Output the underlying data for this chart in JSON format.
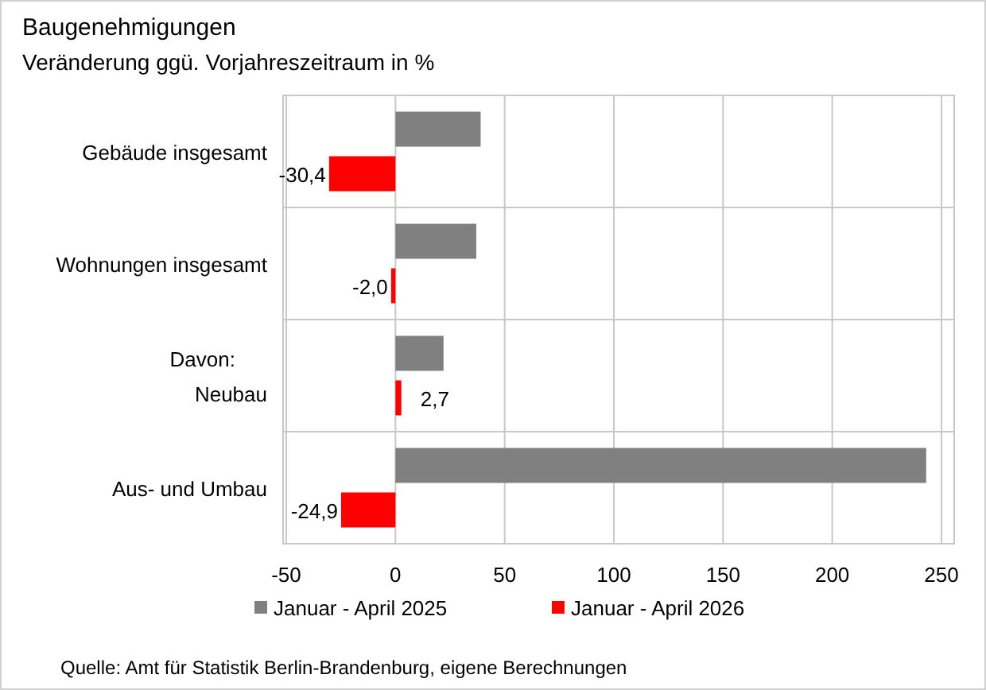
{
  "chart_data": {
    "type": "bar",
    "orientation": "horizontal",
    "title": "Baugenehmigungen",
    "subtitle": "Veränderung ggü. Vorjahreszeitraum in %",
    "categories": [
      "Gebäude insgesamt",
      "Wohnungen insgesamt",
      "Davon:\nNeubau",
      "Aus- und Umbau"
    ],
    "series": [
      {
        "name": "Januar - April 2025",
        "color": "#808080",
        "values": [
          39,
          37,
          22,
          243
        ]
      },
      {
        "name": "Januar - April 2026",
        "color": "#ff0000",
        "values": [
          -30.4,
          -2.0,
          2.7,
          -24.9
        ],
        "value_labels": [
          "-30,4",
          "-2,0",
          "2,7",
          "-24,9"
        ]
      }
    ],
    "xlim": [
      -50,
      250
    ],
    "xticks": [
      -50,
      0,
      50,
      100,
      150,
      200,
      250
    ],
    "grid": true,
    "legend": "bottom",
    "annotations": [
      "Quelle: Amt für Statistik Berlin-Brandenburg,  eigene Berechnungen"
    ]
  }
}
